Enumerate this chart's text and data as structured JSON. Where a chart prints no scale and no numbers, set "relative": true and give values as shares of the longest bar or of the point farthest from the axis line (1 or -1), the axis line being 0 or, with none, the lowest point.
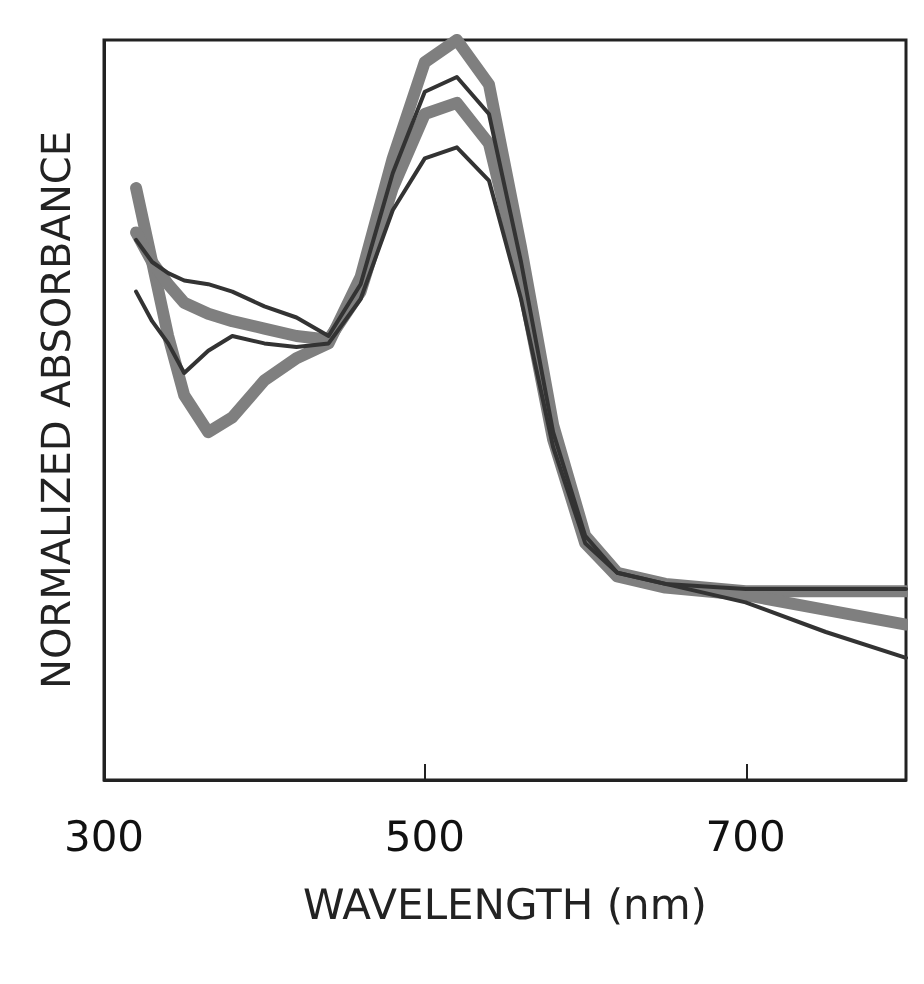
{
  "chart_data": {
    "type": "line",
    "xlabel": "WAVELENGTH (nm)",
    "ylabel": "NORMALIZED ABSORBANCE",
    "relative": true,
    "xlim": [
      300,
      800
    ],
    "xticks": [
      300,
      500,
      700
    ],
    "grid": false,
    "marker": "none",
    "line_style": "solid",
    "x": [
      320,
      330,
      340,
      350,
      365,
      380,
      400,
      420,
      440,
      460,
      480,
      500,
      520,
      540,
      560,
      580,
      600,
      620,
      650,
      700,
      750,
      800
    ],
    "series": [
      {
        "color": "#7f7f7f",
        "values": [
          0.8,
          0.7,
          0.6,
          0.52,
          0.47,
          0.49,
          0.54,
          0.57,
          0.59,
          0.68,
          0.84,
          0.97,
          1.0,
          0.94,
          0.72,
          0.48,
          0.33,
          0.28,
          0.265,
          0.255,
          0.255,
          0.255
        ]
      },
      {
        "color": "#7f7f7f",
        "values": [
          0.74,
          0.7,
          0.67,
          0.645,
          0.63,
          0.62,
          0.61,
          0.6,
          0.595,
          0.66,
          0.8,
          0.9,
          0.915,
          0.86,
          0.68,
          0.46,
          0.32,
          0.275,
          0.26,
          0.25,
          0.23,
          0.21
        ]
      },
      {
        "color": "#333333",
        "values": [
          0.66,
          0.62,
          0.59,
          0.55,
          0.58,
          0.6,
          0.59,
          0.585,
          0.59,
          0.65,
          0.77,
          0.84,
          0.855,
          0.81,
          0.65,
          0.45,
          0.32,
          0.28,
          0.265,
          0.24,
          0.2,
          0.165
        ]
      },
      {
        "color": "#333333",
        "values": [
          0.73,
          0.7,
          0.685,
          0.675,
          0.67,
          0.66,
          0.64,
          0.625,
          0.6,
          0.67,
          0.82,
          0.93,
          0.95,
          0.9,
          0.7,
          0.47,
          0.33,
          0.28,
          0.265,
          0.258,
          0.258,
          0.258
        ]
      }
    ]
  }
}
